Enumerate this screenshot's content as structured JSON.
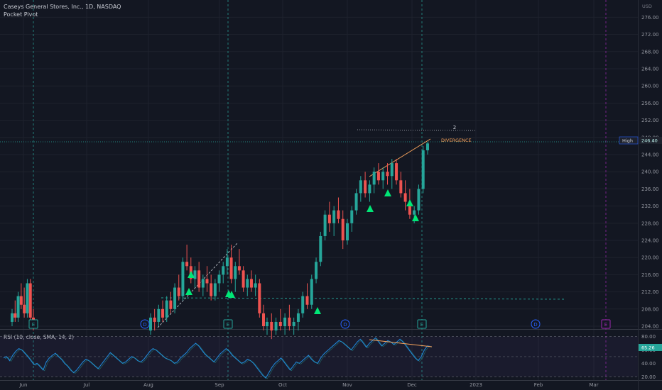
{
  "header": {
    "title": "Caseys General Stores, Inc., 1D, NASDAQ",
    "indicator": "Pocket Pivot"
  },
  "chart_data": {
    "type": "candlestick",
    "price_axis": {
      "currency": "USD",
      "ticks": [
        204,
        208,
        212,
        216,
        220,
        224,
        228,
        232,
        236,
        240,
        244,
        248,
        252,
        256,
        260,
        264,
        268,
        272,
        276
      ],
      "range": [
        203,
        280
      ]
    },
    "time_axis": {
      "labels": [
        "Jun",
        "Jul",
        "Aug",
        "Sep",
        "Oct",
        "Nov",
        "Dec",
        "2023",
        "Feb",
        "Mar"
      ]
    },
    "last_price": "246.60",
    "high_label": "High",
    "high_value": "246.40",
    "divergence_label": "DIVERGENCE",
    "annotation_number": "2",
    "event_markers": [
      "E",
      "D",
      "E",
      "D",
      "E",
      "D",
      "E"
    ],
    "rsi": {
      "label": "RSI (10, close, SMA, 14, 2)",
      "value": "65.26",
      "ticks": [
        20,
        40,
        60,
        80
      ],
      "range": [
        15,
        87
      ],
      "series": [
        48,
        50,
        44,
        52,
        58,
        62,
        60,
        55,
        50,
        44,
        38,
        40,
        35,
        30,
        42,
        48,
        52,
        55,
        50,
        46,
        40,
        36,
        30,
        26,
        30,
        36,
        42,
        46,
        44,
        40,
        36,
        32,
        38,
        44,
        50,
        56,
        52,
        48,
        44,
        40,
        42,
        46,
        50,
        48,
        44,
        42,
        46,
        52,
        58,
        62,
        60,
        56,
        52,
        48,
        46,
        44,
        40,
        42,
        48,
        52,
        56,
        62,
        66,
        70,
        66,
        60,
        54,
        50,
        46,
        42,
        48,
        54,
        58,
        62,
        58,
        52,
        48,
        44,
        40,
        42,
        46,
        44,
        40,
        34,
        28,
        22,
        18,
        26,
        34,
        40,
        44,
        48,
        42,
        36,
        30,
        36,
        42,
        40,
        44,
        48,
        52,
        46,
        42,
        40,
        48,
        54,
        58,
        62,
        66,
        70,
        74,
        72,
        68,
        64,
        60,
        66,
        72,
        76,
        70,
        64,
        70,
        74,
        78,
        72,
        66,
        70,
        74,
        72,
        68,
        72,
        76,
        72,
        66,
        60,
        54,
        48,
        44,
        50,
        60,
        66,
        65.26
      ]
    },
    "candles": [
      [
        205,
        208,
        204,
        207
      ],
      [
        207,
        210,
        205,
        206
      ],
      [
        206,
        212,
        205,
        211
      ],
      [
        211,
        214,
        208,
        209
      ],
      [
        209,
        213,
        206,
        207
      ],
      [
        207,
        215,
        206,
        214
      ],
      [
        214,
        215,
        205,
        206
      ],
      [
        206,
        208,
        203,
        204
      ],
      [
        203,
        207,
        202,
        206
      ],
      [
        206,
        208,
        203,
        205
      ],
      [
        205,
        209,
        204,
        208
      ],
      [
        208,
        210,
        205,
        206
      ],
      [
        206,
        211,
        205,
        210
      ],
      [
        210,
        212,
        207,
        208
      ],
      [
        208,
        214,
        207,
        213
      ],
      [
        213,
        216,
        210,
        211
      ],
      [
        211,
        220,
        210,
        219
      ],
      [
        219,
        223,
        217,
        218
      ],
      [
        218,
        220,
        214,
        215
      ],
      [
        215,
        218,
        213,
        217
      ],
      [
        217,
        219,
        212,
        213
      ],
      [
        213,
        216,
        211,
        215
      ],
      [
        215,
        218,
        212,
        214
      ],
      [
        214,
        216,
        210,
        211
      ],
      [
        211,
        215,
        210,
        214
      ],
      [
        214,
        217,
        212,
        216
      ],
      [
        216,
        219,
        214,
        218
      ],
      [
        218,
        222,
        216,
        220
      ],
      [
        220,
        223,
        214,
        215
      ],
      [
        215,
        219,
        212,
        218
      ],
      [
        218,
        222,
        216,
        217
      ],
      [
        217,
        218,
        212,
        213
      ],
      [
        213,
        216,
        211,
        215
      ],
      [
        215,
        217,
        212,
        213
      ],
      [
        213,
        216,
        211,
        214
      ],
      [
        214,
        215,
        206,
        207
      ],
      [
        207,
        209,
        203,
        204
      ],
      [
        204,
        206,
        202,
        205
      ],
      [
        205,
        207,
        201,
        203
      ],
      [
        203,
        206,
        202,
        205
      ],
      [
        205,
        208,
        203,
        204
      ],
      [
        204,
        207,
        202,
        206
      ],
      [
        206,
        209,
        203,
        204
      ],
      [
        204,
        206,
        202,
        205
      ],
      [
        205,
        208,
        203,
        207
      ],
      [
        207,
        212,
        206,
        211
      ],
      [
        211,
        214,
        208,
        209
      ],
      [
        209,
        216,
        208,
        215
      ],
      [
        215,
        220,
        214,
        219
      ],
      [
        219,
        226,
        218,
        225
      ],
      [
        225,
        231,
        224,
        230
      ],
      [
        230,
        233,
        226,
        228
      ],
      [
        228,
        232,
        225,
        231
      ],
      [
        231,
        234,
        228,
        229
      ],
      [
        229,
        231,
        222,
        224
      ],
      [
        224,
        229,
        223,
        228
      ],
      [
        228,
        232,
        226,
        231
      ],
      [
        231,
        236,
        230,
        235
      ],
      [
        235,
        239,
        233,
        238
      ],
      [
        238,
        240,
        234,
        235
      ],
      [
        235,
        238,
        233,
        237
      ],
      [
        237,
        241,
        235,
        240
      ],
      [
        240,
        242,
        237,
        238
      ],
      [
        238,
        241,
        236,
        240
      ],
      [
        240,
        242,
        237,
        239
      ],
      [
        239,
        243,
        236,
        242
      ],
      [
        242,
        243,
        237,
        238
      ],
      [
        238,
        240,
        234,
        235
      ],
      [
        235,
        238,
        231,
        233
      ],
      [
        233,
        236,
        229,
        230
      ],
      [
        230,
        232,
        228,
        231
      ],
      [
        231,
        237,
        230,
        236
      ],
      [
        236,
        246,
        235,
        245
      ],
      [
        245,
        247,
        244,
        246.6
      ]
    ]
  }
}
